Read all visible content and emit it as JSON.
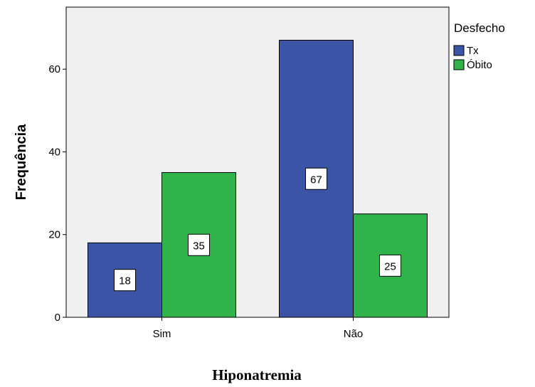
{
  "chart_data": {
    "type": "bar",
    "categories": [
      "Sim",
      "Não"
    ],
    "series": [
      {
        "name": "Tx",
        "values": [
          18,
          67
        ],
        "color": "#3c54a5"
      },
      {
        "name": "Óbito",
        "values": [
          35,
          25
        ],
        "color": "#2fb34a"
      }
    ],
    "xlabel": "Hiponatremia",
    "ylabel": "Frequência",
    "ylim": [
      0,
      75
    ],
    "yticks": [
      0,
      20,
      40,
      60
    ],
    "legend_title": "Desfecho",
    "legend_position": "top-right",
    "grid": false,
    "data_labels": true,
    "plot_background": "#f0f0f0"
  }
}
